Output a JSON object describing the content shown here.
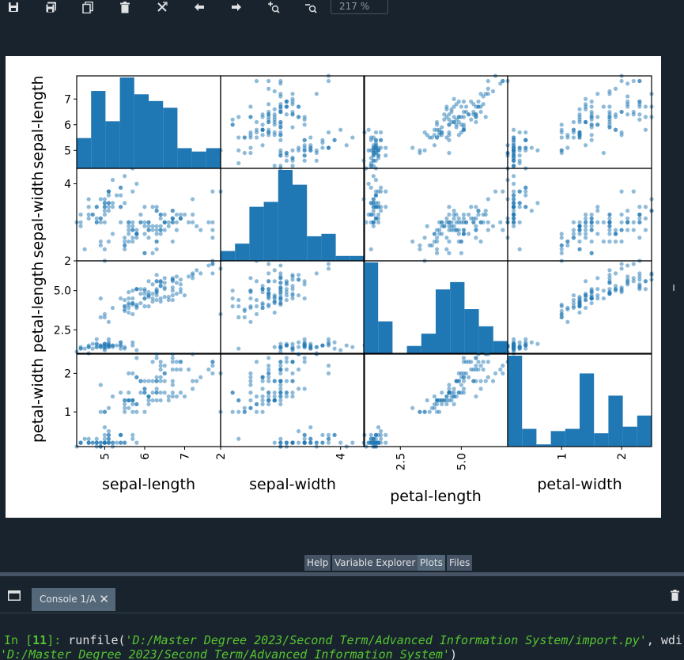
{
  "toolbar": {
    "buttons": [
      {
        "name": "save-icon"
      },
      {
        "name": "save-all-icon"
      },
      {
        "name": "copy-icon"
      },
      {
        "name": "delete-icon"
      },
      {
        "name": "remove-all-icon"
      },
      {
        "name": "previous-icon"
      },
      {
        "name": "next-icon"
      },
      {
        "name": "zoom-in-icon"
      },
      {
        "name": "zoom-out-icon"
      }
    ],
    "zoom_value": "217 %"
  },
  "colors": {
    "background": "#19232d",
    "tab": "#455364",
    "tab_active": "#54687a",
    "plot_blue": "#1f77b4",
    "prompt_green": "#54c52f"
  },
  "chart_data": {
    "type": "scatter-matrix",
    "variables": [
      "sepal-length",
      "sepal-width",
      "petal-length",
      "petal-width"
    ],
    "diagonal": "hist",
    "ranges": {
      "sepal-length": [
        4.3,
        7.9
      ],
      "sepal-width": [
        2.0,
        4.4
      ],
      "petal-length": [
        1.0,
        6.9
      ],
      "petal-width": [
        0.1,
        2.5
      ]
    },
    "ticks": {
      "sepal-length": {
        "y": [
          "5",
          "6",
          "7"
        ],
        "x": [
          "5",
          "6",
          "7"
        ]
      },
      "sepal-width": {
        "y": [
          "2",
          "4"
        ],
        "x": [
          "2",
          "4"
        ]
      },
      "petal-length": {
        "y": [
          "2.5",
          "5.0"
        ],
        "x": [
          "2.5",
          "5.0"
        ]
      },
      "petal-width": {
        "y": [
          "1",
          "2"
        ],
        "x": [
          "1",
          "2"
        ]
      }
    },
    "samples": [
      [
        5.1,
        3.5,
        1.4,
        0.2
      ],
      [
        4.9,
        3.0,
        1.4,
        0.2
      ],
      [
        4.7,
        3.2,
        1.3,
        0.2
      ],
      [
        4.6,
        3.1,
        1.5,
        0.2
      ],
      [
        5.0,
        3.6,
        1.4,
        0.2
      ],
      [
        5.4,
        3.9,
        1.7,
        0.4
      ],
      [
        4.6,
        3.4,
        1.4,
        0.3
      ],
      [
        5.0,
        3.4,
        1.5,
        0.2
      ],
      [
        4.4,
        2.9,
        1.4,
        0.2
      ],
      [
        4.9,
        3.1,
        1.5,
        0.1
      ],
      [
        5.4,
        3.7,
        1.5,
        0.2
      ],
      [
        4.8,
        3.4,
        1.6,
        0.2
      ],
      [
        4.8,
        3.0,
        1.4,
        0.1
      ],
      [
        4.3,
        3.0,
        1.1,
        0.1
      ],
      [
        5.8,
        4.0,
        1.2,
        0.2
      ],
      [
        5.7,
        4.4,
        1.5,
        0.4
      ],
      [
        5.4,
        3.9,
        1.3,
        0.4
      ],
      [
        5.1,
        3.5,
        1.4,
        0.3
      ],
      [
        5.7,
        3.8,
        1.7,
        0.3
      ],
      [
        5.1,
        3.8,
        1.5,
        0.3
      ],
      [
        5.4,
        3.4,
        1.7,
        0.2
      ],
      [
        5.1,
        3.7,
        1.5,
        0.4
      ],
      [
        4.6,
        3.6,
        1.0,
        0.2
      ],
      [
        5.1,
        3.3,
        1.7,
        0.5
      ],
      [
        4.8,
        3.4,
        1.9,
        0.2
      ],
      [
        5.0,
        3.0,
        1.6,
        0.2
      ],
      [
        5.0,
        3.4,
        1.6,
        0.4
      ],
      [
        5.2,
        3.5,
        1.5,
        0.2
      ],
      [
        5.2,
        3.4,
        1.4,
        0.2
      ],
      [
        4.7,
        3.2,
        1.6,
        0.2
      ],
      [
        4.8,
        3.1,
        1.6,
        0.2
      ],
      [
        5.4,
        3.4,
        1.5,
        0.4
      ],
      [
        5.2,
        4.1,
        1.5,
        0.1
      ],
      [
        5.5,
        4.2,
        1.4,
        0.2
      ],
      [
        4.9,
        3.1,
        1.5,
        0.2
      ],
      [
        5.0,
        3.2,
        1.2,
        0.2
      ],
      [
        5.5,
        3.5,
        1.3,
        0.2
      ],
      [
        4.9,
        3.6,
        1.4,
        0.1
      ],
      [
        4.4,
        3.0,
        1.3,
        0.2
      ],
      [
        5.1,
        3.4,
        1.5,
        0.2
      ],
      [
        5.0,
        3.5,
        1.3,
        0.3
      ],
      [
        4.5,
        2.3,
        1.3,
        0.3
      ],
      [
        4.4,
        3.2,
        1.3,
        0.2
      ],
      [
        5.0,
        3.5,
        1.6,
        0.6
      ],
      [
        5.1,
        3.8,
        1.9,
        0.4
      ],
      [
        4.8,
        3.0,
        1.4,
        0.3
      ],
      [
        5.1,
        3.8,
        1.6,
        0.2
      ],
      [
        4.6,
        3.2,
        1.4,
        0.2
      ],
      [
        5.3,
        3.7,
        1.5,
        0.2
      ],
      [
        5.0,
        3.3,
        1.4,
        0.2
      ],
      [
        7.0,
        3.2,
        4.7,
        1.4
      ],
      [
        6.4,
        3.2,
        4.5,
        1.5
      ],
      [
        6.9,
        3.1,
        4.9,
        1.5
      ],
      [
        5.5,
        2.3,
        4.0,
        1.3
      ],
      [
        6.5,
        2.8,
        4.6,
        1.5
      ],
      [
        5.7,
        2.8,
        4.5,
        1.3
      ],
      [
        6.3,
        3.3,
        4.7,
        1.6
      ],
      [
        4.9,
        2.4,
        3.3,
        1.0
      ],
      [
        6.6,
        2.9,
        4.6,
        1.3
      ],
      [
        5.2,
        2.7,
        3.9,
        1.4
      ],
      [
        5.0,
        2.0,
        3.5,
        1.0
      ],
      [
        5.9,
        3.0,
        4.2,
        1.5
      ],
      [
        6.0,
        2.2,
        4.0,
        1.0
      ],
      [
        6.1,
        2.9,
        4.7,
        1.4
      ],
      [
        5.6,
        2.9,
        3.6,
        1.3
      ],
      [
        6.7,
        3.1,
        4.4,
        1.4
      ],
      [
        5.6,
        3.0,
        4.5,
        1.5
      ],
      [
        5.8,
        2.7,
        4.1,
        1.0
      ],
      [
        6.2,
        2.2,
        4.5,
        1.5
      ],
      [
        5.6,
        2.5,
        3.9,
        1.1
      ],
      [
        5.9,
        3.2,
        4.8,
        1.8
      ],
      [
        6.1,
        2.8,
        4.0,
        1.3
      ],
      [
        6.3,
        2.5,
        4.9,
        1.5
      ],
      [
        6.1,
        2.8,
        4.7,
        1.2
      ],
      [
        6.4,
        2.9,
        4.3,
        1.3
      ],
      [
        6.6,
        3.0,
        4.4,
        1.4
      ],
      [
        6.8,
        2.8,
        4.8,
        1.4
      ],
      [
        6.7,
        3.0,
        5.0,
        1.7
      ],
      [
        6.0,
        2.9,
        4.5,
        1.5
      ],
      [
        5.7,
        2.6,
        3.5,
        1.0
      ],
      [
        5.5,
        2.4,
        3.8,
        1.1
      ],
      [
        5.5,
        2.4,
        3.7,
        1.0
      ],
      [
        5.8,
        2.7,
        3.9,
        1.2
      ],
      [
        6.0,
        2.7,
        5.1,
        1.6
      ],
      [
        5.4,
        3.0,
        4.5,
        1.5
      ],
      [
        6.0,
        3.4,
        4.5,
        1.6
      ],
      [
        6.7,
        3.1,
        4.7,
        1.5
      ],
      [
        6.3,
        2.3,
        4.4,
        1.3
      ],
      [
        5.6,
        3.0,
        4.1,
        1.3
      ],
      [
        5.5,
        2.5,
        4.0,
        1.3
      ],
      [
        5.5,
        2.6,
        4.4,
        1.2
      ],
      [
        6.1,
        3.0,
        4.6,
        1.4
      ],
      [
        5.8,
        2.6,
        4.0,
        1.2
      ],
      [
        5.0,
        2.3,
        3.3,
        1.0
      ],
      [
        5.6,
        2.7,
        4.2,
        1.3
      ],
      [
        5.7,
        3.0,
        4.2,
        1.2
      ],
      [
        5.7,
        2.9,
        4.2,
        1.3
      ],
      [
        6.2,
        2.9,
        4.3,
        1.3
      ],
      [
        5.1,
        2.5,
        3.0,
        1.1
      ],
      [
        5.7,
        2.8,
        4.1,
        1.3
      ],
      [
        6.3,
        3.3,
        6.0,
        2.5
      ],
      [
        5.8,
        2.7,
        5.1,
        1.9
      ],
      [
        7.1,
        3.0,
        5.9,
        2.1
      ],
      [
        6.3,
        2.9,
        5.6,
        1.8
      ],
      [
        6.5,
        3.0,
        5.8,
        2.2
      ],
      [
        7.6,
        3.0,
        6.6,
        2.1
      ],
      [
        4.9,
        2.5,
        4.5,
        1.7
      ],
      [
        7.3,
        2.9,
        6.3,
        1.8
      ],
      [
        6.7,
        2.5,
        5.8,
        1.8
      ],
      [
        7.2,
        3.6,
        6.1,
        2.5
      ],
      [
        6.5,
        3.2,
        5.1,
        2.0
      ],
      [
        6.4,
        2.7,
        5.3,
        1.9
      ],
      [
        6.8,
        3.0,
        5.5,
        2.1
      ],
      [
        5.7,
        2.5,
        5.0,
        2.0
      ],
      [
        5.8,
        2.8,
        5.1,
        2.4
      ],
      [
        6.4,
        3.2,
        5.3,
        2.3
      ],
      [
        6.5,
        3.0,
        5.5,
        1.8
      ],
      [
        7.7,
        3.8,
        6.7,
        2.2
      ],
      [
        7.7,
        2.6,
        6.9,
        2.3
      ],
      [
        6.0,
        2.2,
        5.0,
        1.5
      ],
      [
        6.9,
        3.2,
        5.7,
        2.3
      ],
      [
        5.6,
        2.8,
        4.9,
        2.0
      ],
      [
        7.7,
        2.8,
        6.7,
        2.0
      ],
      [
        6.3,
        2.7,
        4.9,
        1.8
      ],
      [
        6.7,
        3.3,
        5.7,
        2.1
      ],
      [
        7.2,
        3.2,
        6.0,
        1.8
      ],
      [
        6.2,
        2.8,
        4.8,
        1.8
      ],
      [
        6.1,
        3.0,
        4.9,
        1.8
      ],
      [
        6.4,
        2.8,
        5.6,
        2.1
      ],
      [
        7.2,
        3.0,
        5.8,
        1.6
      ],
      [
        7.4,
        2.8,
        6.1,
        1.9
      ],
      [
        7.9,
        3.8,
        6.4,
        2.0
      ],
      [
        6.4,
        2.8,
        5.6,
        2.2
      ],
      [
        6.3,
        2.8,
        5.1,
        1.5
      ],
      [
        6.1,
        2.6,
        5.6,
        1.4
      ],
      [
        7.7,
        3.0,
        6.1,
        2.3
      ],
      [
        6.3,
        3.4,
        5.6,
        2.4
      ],
      [
        6.4,
        3.1,
        5.5,
        1.8
      ],
      [
        6.0,
        3.0,
        4.8,
        1.8
      ],
      [
        6.9,
        3.1,
        5.4,
        2.1
      ],
      [
        6.7,
        3.1,
        5.6,
        2.4
      ],
      [
        6.9,
        3.1,
        5.1,
        2.3
      ],
      [
        5.8,
        2.7,
        5.1,
        1.9
      ],
      [
        6.8,
        3.2,
        5.9,
        2.3
      ],
      [
        6.7,
        3.3,
        5.7,
        2.5
      ],
      [
        6.7,
        3.0,
        5.2,
        2.3
      ],
      [
        6.3,
        2.5,
        5.0,
        1.9
      ],
      [
        6.5,
        3.0,
        5.2,
        2.0
      ],
      [
        6.2,
        3.4,
        5.4,
        2.3
      ],
      [
        5.9,
        3.0,
        5.1,
        1.8
      ]
    ]
  },
  "pane_tabs": [
    {
      "label": "Help",
      "active": false
    },
    {
      "label": "Variable Explorer",
      "active": false
    },
    {
      "label": "Plots",
      "active": true
    },
    {
      "label": "Files",
      "active": false
    }
  ],
  "console": {
    "tab_label": "Console 1/A",
    "close_glyph": "✕",
    "prompt_in": "In [",
    "prompt_num": "11",
    "prompt_end": "]: ",
    "cmd_func": "runfile(",
    "cmd_path": "'D:/Master Degree 2023/Second Term/Advanced Information System/import.py'",
    "cmd_sep": ", wdir=",
    "cmd_wdir": "'D:/Master Degree 2023/Second Term/Advanced Information System'",
    "cmd_end": ")"
  }
}
